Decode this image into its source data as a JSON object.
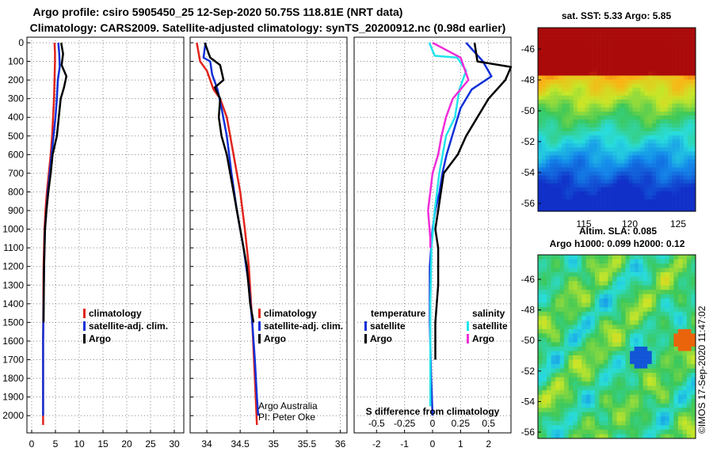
{
  "header": {
    "line1": "Argo profile: csiro 5905450_25 12-Sep-2020 50.75S 118.81E (NRT data)",
    "line2": "Climatology: CARS2009. Satellite-adjusted climatology: synTS_20200912.nc (0.98d earlier)"
  },
  "colors": {
    "climatology": "#e0241b",
    "satellite": "#1030d8",
    "argo": "#000000",
    "salinity_sat": "#20e4ec",
    "salinity_argo": "#f02cd8"
  },
  "chart_data": [
    {
      "type": "line",
      "id": "temperature",
      "xlim": [
        -1,
        32
      ],
      "ylim": [
        0,
        2050
      ],
      "xticks": [
        0,
        5,
        10,
        15,
        20,
        25,
        30
      ],
      "yticks": [
        0,
        100,
        200,
        300,
        400,
        500,
        600,
        700,
        800,
        900,
        1000,
        1100,
        1200,
        1300,
        1400,
        1500,
        1600,
        1700,
        1800,
        1900,
        2000
      ],
      "grid": true,
      "legend": [
        "climatology",
        "satellite-adj. clim.",
        "Argo"
      ],
      "series": [
        {
          "name": "climatology",
          "x": [
            4.8,
            4.9,
            4.9,
            4.8,
            4.7,
            4.5,
            4.3,
            4.0,
            3.6,
            3.2,
            2.9,
            2.7,
            2.5,
            2.4,
            2.4
          ],
          "y": [
            0,
            50,
            100,
            200,
            300,
            400,
            500,
            600,
            700,
            800,
            900,
            1000,
            1200,
            1600,
            2050
          ]
        },
        {
          "name": "satellite-adj. clim.",
          "x": [
            5.6,
            5.8,
            5.9,
            5.5,
            5.3,
            5.0,
            4.6,
            4.2,
            3.8,
            3.4,
            3.1,
            2.8,
            2.6,
            2.4,
            2.4
          ],
          "y": [
            0,
            60,
            130,
            200,
            300,
            400,
            500,
            600,
            700,
            800,
            900,
            1000,
            1200,
            1600,
            2000
          ]
        },
        {
          "name": "Argo",
          "x": [
            6.2,
            6.6,
            6.3,
            7.3,
            6.8,
            6.1,
            5.7,
            5.3,
            4.4,
            4.0,
            3.5,
            3.1,
            2.8,
            2.6,
            2.5
          ],
          "y": [
            0,
            60,
            120,
            180,
            240,
            300,
            400,
            500,
            600,
            700,
            800,
            900,
            1000,
            1200,
            1500
          ]
        }
      ]
    },
    {
      "type": "line",
      "id": "salinity",
      "xlim": [
        33.75,
        36.1
      ],
      "ylim": [
        0,
        2050
      ],
      "xticks": [
        34,
        34.5,
        35,
        35.5,
        36
      ],
      "grid": true,
      "legend": [
        "climatology",
        "satellite-adj. clim.",
        "Argo"
      ],
      "annotations": [
        "Argo Australia",
        "PI: Peter Oke"
      ],
      "series": [
        {
          "name": "climatology",
          "x": [
            33.85,
            33.9,
            34.0,
            34.05,
            34.1,
            34.2,
            34.3,
            34.4,
            34.5,
            34.57,
            34.63,
            34.68,
            34.72,
            34.75
          ],
          "y": [
            0,
            100,
            150,
            200,
            250,
            300,
            400,
            600,
            800,
            1000,
            1200,
            1500,
            1800,
            2050
          ]
        },
        {
          "name": "satellite-adj. clim.",
          "x": [
            33.98,
            33.95,
            34.05,
            34.08,
            34.16,
            34.22,
            34.3,
            34.37,
            34.45,
            34.55,
            34.63,
            34.68,
            34.72,
            34.75,
            34.77
          ],
          "y": [
            0,
            80,
            100,
            170,
            250,
            350,
            500,
            700,
            900,
            1100,
            1300,
            1500,
            1700,
            1900,
            2000
          ]
        },
        {
          "name": "Argo",
          "x": [
            33.97,
            34.05,
            34.2,
            34.25,
            34.12,
            34.2,
            34.18,
            34.22,
            34.3,
            34.4,
            34.5,
            34.6,
            34.65,
            34.7
          ],
          "y": [
            0,
            80,
            120,
            200,
            240,
            300,
            400,
            500,
            600,
            800,
            1000,
            1200,
            1400,
            1500
          ]
        }
      ]
    },
    {
      "type": "line",
      "id": "difference",
      "xlim": [
        -2.8,
        2.8
      ],
      "ylim": [
        0,
        2050
      ],
      "xticks": [
        -2,
        -1,
        0,
        1,
        2
      ],
      "sxticks": [
        -0.5,
        -0.25,
        0,
        0.25,
        0.5
      ],
      "xlabel": "S difference from climatology",
      "grid": true,
      "legend_temp": [
        "temperature",
        "satellite",
        "Argo"
      ],
      "legend_sal": [
        "salinity",
        "satellite",
        "Argo"
      ],
      "series": [
        {
          "name": "T satellite",
          "x": [
            1.2,
            1.8,
            2.1,
            1.4,
            1.0,
            0.8,
            0.5,
            0.35,
            0.25,
            0.1,
            0.0,
            -0.1,
            -0.1,
            -0.05,
            0.0
          ],
          "y": [
            0,
            100,
            180,
            250,
            350,
            450,
            600,
            700,
            800,
            900,
            1000,
            1200,
            1500,
            1800,
            2000
          ]
        },
        {
          "name": "T Argo",
          "x": [
            1.5,
            1.6,
            2.8,
            2.6,
            2.0,
            1.6,
            1.2,
            0.9,
            0.4,
            0.2,
            0.1,
            0.2,
            0.2,
            0.1,
            0.1
          ],
          "y": [
            0,
            100,
            130,
            200,
            300,
            400,
            500,
            600,
            700,
            900,
            1000,
            1100,
            1300,
            1500,
            1700
          ]
        },
        {
          "name": "S satellite",
          "x": [
            -0.03,
            0.02,
            0.22,
            0.3,
            0.24,
            0.2,
            0.12,
            0.06,
            0.02,
            -0.01,
            -0.02,
            -0.02,
            -0.02
          ],
          "y": [
            0,
            70,
            80,
            150,
            250,
            400,
            500,
            700,
            900,
            1100,
            1400,
            1700,
            1950
          ]
        },
        {
          "name": "S Argo",
          "x": [
            0.0,
            0.25,
            0.32,
            0.18,
            0.12,
            0.08,
            0.05,
            0.0,
            -0.04,
            -0.02,
            -0.02
          ],
          "y": [
            0,
            80,
            200,
            300,
            400,
            500,
            600,
            700,
            900,
            1050,
            1100
          ]
        }
      ]
    }
  ],
  "maps": {
    "sst": {
      "title": "sat. SST: 5.33 Argo: 5.85",
      "lat_ticks": [
        "-46",
        "-48",
        "-50",
        "-52",
        "-54",
        "-56"
      ],
      "lon_ticks": [
        "115",
        "120",
        "125"
      ]
    },
    "sla": {
      "title1": "Altim. SLA: 0.085",
      "title2": "Argo h1000: 0.099 h2000: 0.12",
      "lat_ticks": [
        "-46",
        "-48",
        "-50",
        "-52",
        "-54",
        "-56"
      ]
    }
  },
  "footer": {
    "credit": "©IMOS 17-Sep-2020 11:47:02"
  }
}
